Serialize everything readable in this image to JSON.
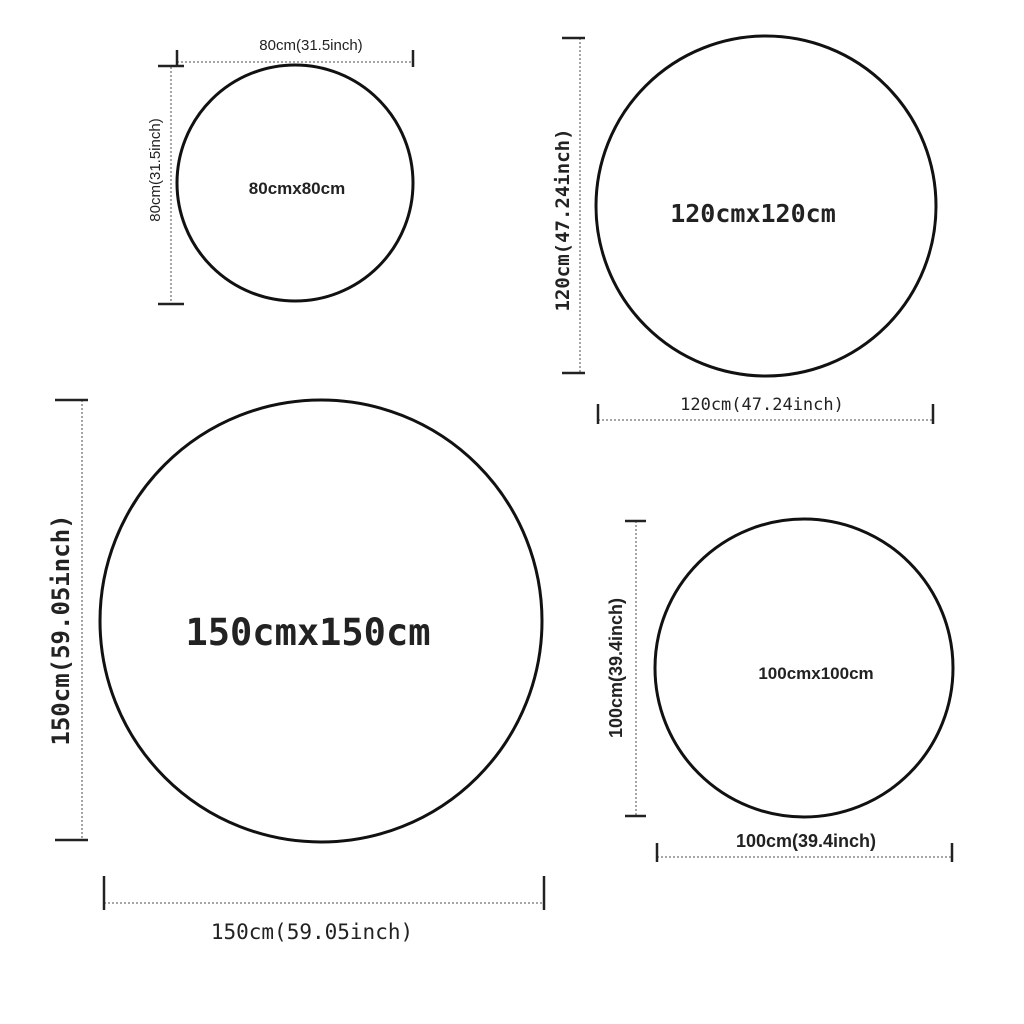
{
  "circles": {
    "c80": {
      "center_label": "80cmx80cm",
      "width_label": "80cm(31.5inch)",
      "height_label": "80cm(31.5inch)"
    },
    "c120": {
      "center_label": "120cmx120cm",
      "width_label": "120cm(47.24inch)",
      "height_label": "120cm(47.24inch)"
    },
    "c150": {
      "center_label": "150cmx150cm",
      "width_label": "150cm(59.05inch)",
      "height_label": "150cm(59.05inch)"
    },
    "c100": {
      "center_label": "100cmx100cm",
      "width_label": "100cm(39.4inch)",
      "height_label": "100cm(39.4inch)"
    }
  },
  "colors": {
    "outline": "#111111",
    "dimension_line": "#888888"
  }
}
